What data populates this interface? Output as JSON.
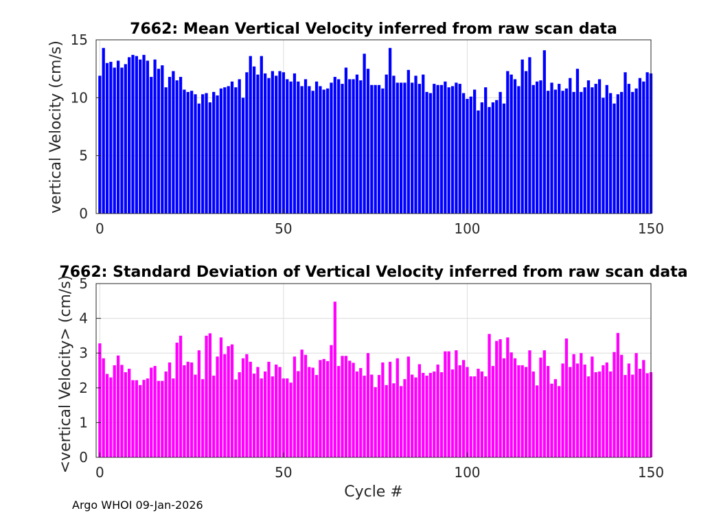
{
  "footer": "Argo WHOI 09-Jan-2026",
  "chart_data": [
    {
      "type": "bar",
      "title": "7662: Mean Vertical Velocity inferred from raw scan data",
      "xlabel": "",
      "ylabel": "vertical Velocity (cm/s)",
      "xlim": [
        -1,
        150
      ],
      "ylim": [
        0,
        15
      ],
      "xticks": [
        "0",
        "50",
        "100",
        "150"
      ],
      "yticks": [
        "0",
        "5",
        "10",
        "15"
      ],
      "grid": true,
      "color": "#0000ff",
      "x_start": 0,
      "values": [
        11.9,
        14.3,
        13.0,
        13.1,
        12.6,
        13.2,
        12.6,
        12.9,
        13.5,
        13.7,
        13.6,
        13.3,
        13.7,
        13.2,
        11.8,
        13.3,
        12.5,
        12.8,
        10.9,
        11.8,
        12.3,
        11.5,
        11.8,
        10.7,
        10.5,
        10.6,
        10.3,
        9.5,
        10.3,
        10.4,
        9.6,
        10.5,
        10.2,
        10.8,
        10.9,
        11.0,
        11.4,
        10.9,
        11.6,
        10.0,
        12.2,
        13.6,
        12.7,
        12.0,
        13.6,
        12.1,
        11.7,
        12.3,
        11.9,
        12.3,
        12.2,
        11.6,
        11.4,
        12.1,
        11.4,
        11.0,
        11.6,
        11.0,
        10.6,
        11.4,
        11.0,
        10.7,
        10.8,
        11.3,
        11.8,
        11.6,
        11.2,
        12.6,
        11.6,
        11.6,
        12.0,
        11.5,
        13.8,
        12.5,
        11.1,
        11.1,
        11.1,
        10.8,
        12.0,
        14.3,
        11.9,
        11.3,
        11.3,
        11.3,
        12.4,
        11.3,
        11.9,
        11.2,
        12.0,
        10.5,
        10.4,
        11.2,
        11.1,
        11.1,
        11.4,
        10.9,
        11.0,
        11.3,
        11.2,
        10.4,
        9.9,
        10.1,
        10.7,
        8.9,
        9.6,
        10.9,
        9.2,
        9.6,
        9.8,
        10.5,
        9.5,
        12.3,
        12.0,
        11.6,
        11.0,
        13.3,
        12.3,
        13.5,
        11.1,
        11.4,
        11.5,
        14.1,
        10.6,
        11.3,
        10.7,
        11.2,
        10.6,
        10.8,
        11.7,
        10.5,
        12.5,
        10.5,
        10.9,
        11.5,
        10.9,
        11.2,
        11.6,
        10.0,
        11.1,
        10.4,
        9.5,
        10.3,
        10.5,
        12.2,
        11.2,
        10.5,
        10.8,
        11.7,
        11.4,
        12.2,
        12.1
      ]
    },
    {
      "type": "bar",
      "title": "7662: Standard Deviation of Vertical Velocity inferred from raw scan data",
      "xlabel": "Cycle #",
      "ylabel": "<vertical Velocity> (cm/s)",
      "xlim": [
        -1,
        150
      ],
      "ylim": [
        0,
        5
      ],
      "xticks": [
        "0",
        "50",
        "100",
        "150"
      ],
      "yticks": [
        "0",
        "1",
        "2",
        "3",
        "4",
        "5"
      ],
      "grid": true,
      "color": "#ff00ff",
      "x_start": 0,
      "values": [
        3.28,
        2.85,
        2.4,
        2.3,
        2.65,
        2.93,
        2.66,
        2.45,
        2.55,
        2.22,
        2.22,
        2.08,
        2.23,
        2.27,
        2.58,
        2.63,
        2.2,
        2.2,
        2.47,
        2.73,
        2.27,
        3.3,
        3.5,
        2.65,
        2.75,
        2.73,
        2.38,
        3.08,
        2.25,
        3.5,
        3.57,
        2.35,
        2.9,
        3.45,
        2.97,
        3.2,
        3.25,
        2.24,
        2.45,
        2.85,
        2.97,
        2.75,
        2.41,
        2.6,
        2.27,
        2.47,
        2.75,
        2.33,
        2.67,
        2.6,
        2.27,
        2.27,
        2.15,
        2.9,
        2.48,
        3.1,
        2.95,
        2.6,
        2.58,
        2.37,
        2.8,
        2.83,
        2.77,
        3.23,
        4.48,
        2.63,
        2.92,
        2.92,
        2.78,
        2.72,
        2.47,
        2.57,
        2.35,
        3.0,
        2.38,
        2.02,
        2.37,
        2.73,
        2.08,
        2.75,
        2.13,
        2.85,
        2.05,
        2.25,
        2.9,
        2.38,
        2.3,
        2.68,
        2.43,
        2.35,
        2.43,
        2.47,
        2.67,
        2.45,
        3.05,
        3.05,
        2.53,
        3.08,
        2.65,
        2.8,
        2.6,
        2.33,
        2.33,
        2.55,
        2.47,
        2.33,
        3.55,
        2.63,
        3.35,
        3.4,
        2.85,
        3.45,
        3.02,
        2.85,
        2.65,
        2.65,
        2.6,
        3.08,
        2.47,
        2.07,
        2.87,
        3.08,
        2.63,
        2.12,
        2.25,
        2.05,
        2.7,
        3.42,
        2.6,
        2.97,
        2.7,
        3.0,
        2.67,
        2.33,
        2.9,
        2.45,
        2.47,
        2.65,
        2.73,
        2.47,
        3.03,
        3.58,
        2.95,
        2.37,
        2.7,
        2.38,
        3.0,
        2.55,
        2.8,
        2.42,
        2.45
      ]
    }
  ]
}
